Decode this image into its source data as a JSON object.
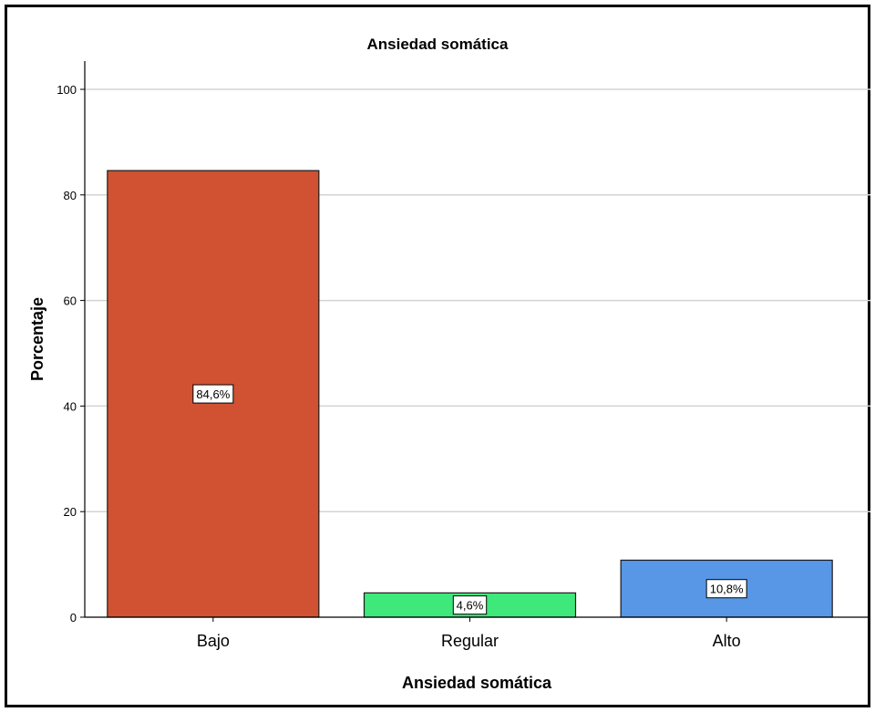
{
  "chart_data": {
    "type": "bar",
    "title": "Ansiedad somática",
    "xlabel": "Ansiedad somática",
    "ylabel": "Porcentaje",
    "categories": [
      "Bajo",
      "Regular",
      "Alto"
    ],
    "values": [
      84.6,
      4.6,
      10.8
    ],
    "data_labels": [
      "84,6%",
      "4,6%",
      "10,8%"
    ],
    "colors": [
      "#d05232",
      "#3fe87a",
      "#5897e6"
    ],
    "ylim": [
      0,
      100
    ],
    "yticks": [
      0,
      20,
      40,
      60,
      80,
      100
    ],
    "grid": true,
    "legend": "none"
  }
}
